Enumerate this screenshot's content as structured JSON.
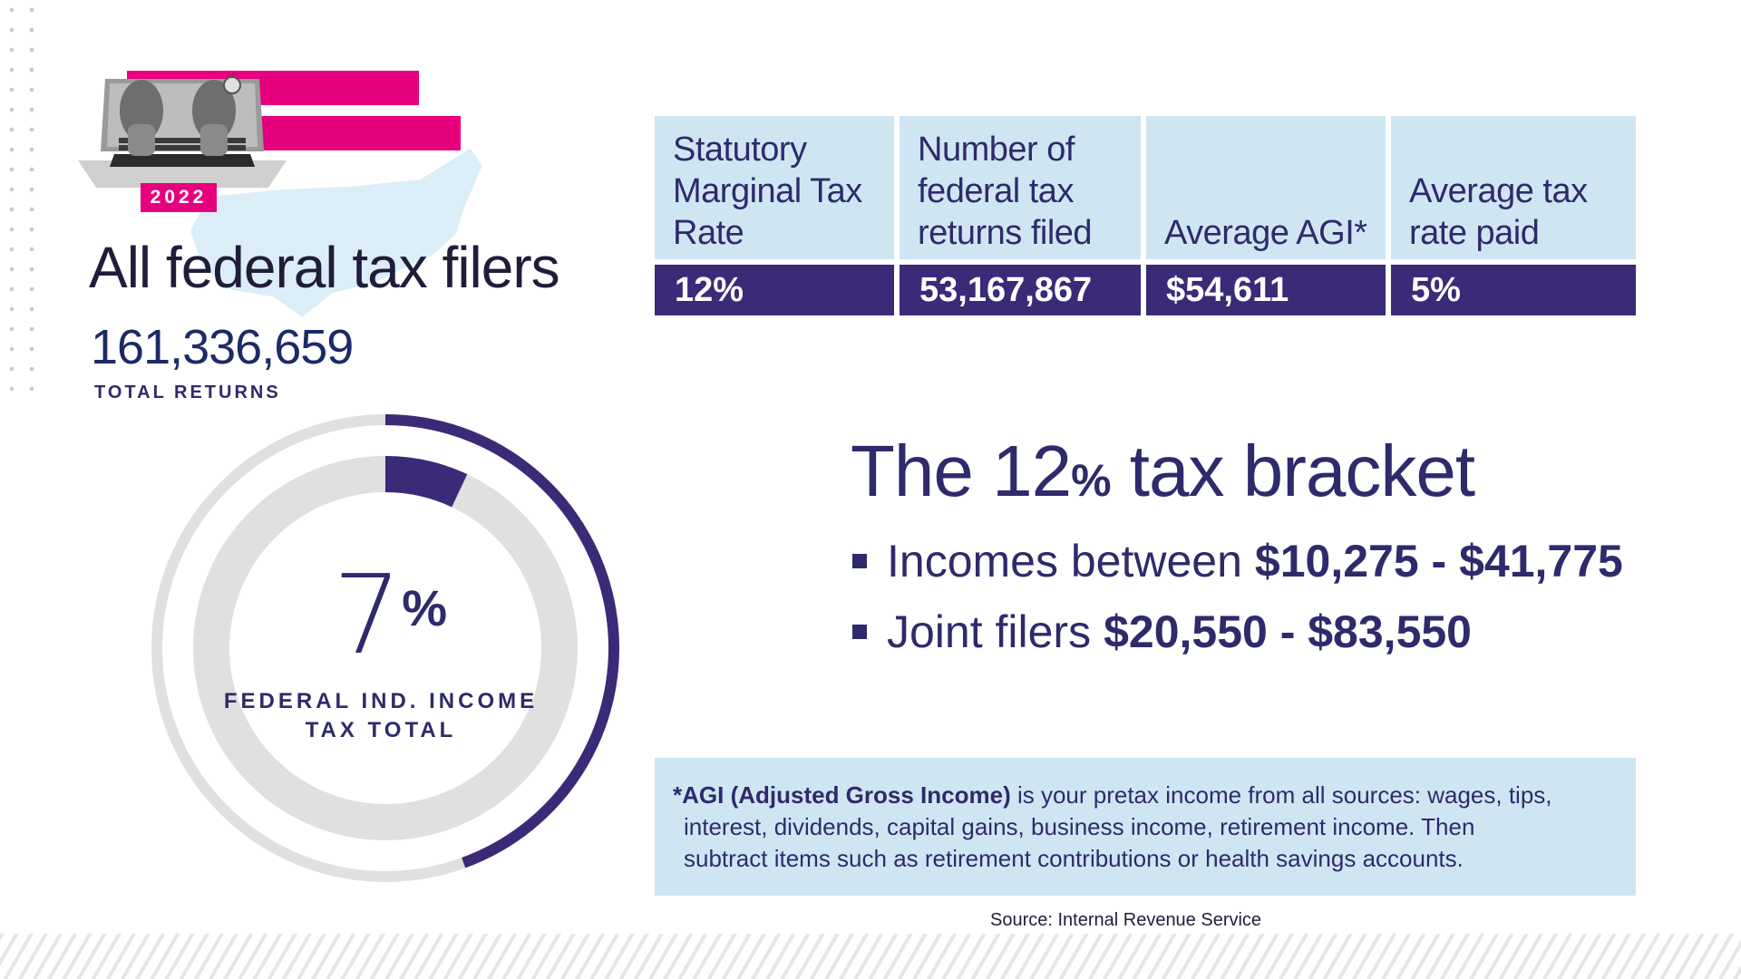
{
  "hero": {
    "year": "2022",
    "title": "All federal tax filers",
    "total_value": "161,336,659",
    "total_label": "TOTAL RETURNS"
  },
  "donut": {
    "value": "7",
    "unit": "%",
    "label_line1": "FEDERAL IND. INCOME",
    "label_line2": "TAX TOTAL",
    "percent": 7,
    "colors": {
      "arc": "#3a2a78",
      "track": "#e0e0e0"
    }
  },
  "table": {
    "headers": [
      "Statutory Marginal Tax Rate",
      "Number of federal tax returns filed",
      "Average AGI*",
      "Average tax rate paid"
    ],
    "values": [
      "12%",
      "53,167,867",
      "$54,611",
      "5%"
    ]
  },
  "bracket": {
    "title_prefix": "The 12",
    "title_pct": "%",
    "title_suffix": " tax bracket",
    "items": [
      {
        "text": "Incomes between",
        "amount": "$10,275 - $41,775"
      },
      {
        "text": "Joint filers",
        "amount": "$20,550 - $83,550"
      }
    ]
  },
  "note": {
    "term": "*AGI (Adjusted Gross Income)",
    "line1": " is your pretax income from all sources: wages, tips,",
    "line2": "interest, dividends, capital gains, business income, retirement income. Then",
    "line3": "subtract items such as retirement contributions or health savings accounts."
  },
  "source": "Source: Internal Revenue Service",
  "colors": {
    "accent_pink": "#e6007e",
    "primary_purple": "#3a2a78",
    "light_blue": "#cfe6f2"
  },
  "icons": [
    "laptop-hands-photo",
    "us-map-shape"
  ]
}
